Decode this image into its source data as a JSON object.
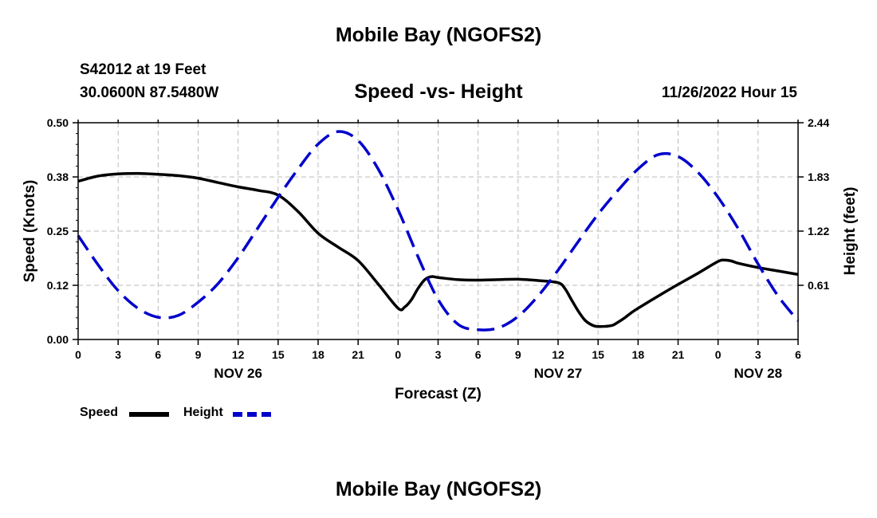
{
  "header": {
    "title": "Mobile Bay (NGOFS2)",
    "station": "S42012 at 19 Feet",
    "coordinates": "30.0600N  87.5480W",
    "subtitle": "Speed -vs- Height",
    "datetime": "11/26/2022 Hour 15"
  },
  "footer": {
    "title": "Mobile Bay (NGOFS2)"
  },
  "legend": {
    "speed_label": "Speed",
    "height_label": "Height"
  },
  "chart_data": {
    "type": "line",
    "title": "Speed -vs- Height",
    "xlabel": "Forecast (Z)",
    "ylabel": "Speed (Knots)",
    "ylabel_right": "Height (feet)",
    "xlim": [
      0,
      54
    ],
    "ylim": [
      0,
      0.5
    ],
    "ylim_right": [
      0,
      2.44
    ],
    "x_ticks": [
      0,
      3,
      6,
      9,
      12,
      15,
      18,
      21,
      24,
      27,
      30,
      33,
      36,
      39,
      42,
      45,
      48,
      51,
      54
    ],
    "x_tick_labels": [
      "0",
      "3",
      "6",
      "9",
      "12",
      "15",
      "18",
      "21",
      "0",
      "3",
      "6",
      "9",
      "12",
      "15",
      "18",
      "21",
      "0",
      "3",
      "6"
    ],
    "y_ticks": [
      0.0,
      0.125,
      0.25,
      0.375,
      0.5
    ],
    "y_tick_labels": [
      "0.00",
      "0.12",
      "0.25",
      "0.38",
      "0.50"
    ],
    "y_right_ticks": [
      0.61,
      1.22,
      1.83,
      2.44
    ],
    "y_right_tick_labels": [
      "0.61",
      "1.22",
      "1.83",
      "2.44"
    ],
    "date_labels": [
      {
        "x": 12,
        "label": "NOV 26"
      },
      {
        "x": 36,
        "label": "NOV 27"
      },
      {
        "x": 51,
        "label": "NOV 28"
      }
    ],
    "grid": true,
    "series": [
      {
        "name": "Speed",
        "axis": "left",
        "color": "#000000",
        "dash": "solid",
        "x": [
          0,
          1.5,
          3,
          4.5,
          6,
          7.5,
          9,
          10.5,
          12,
          13.5,
          15,
          16.5,
          18,
          19.5,
          21,
          22.5,
          24,
          24.5,
          25,
          25.5,
          26,
          26.5,
          27,
          28.5,
          30,
          31.5,
          33,
          34.5,
          36,
          36.5,
          37,
          37.5,
          38,
          38.5,
          39,
          40,
          40.5,
          41,
          41.5,
          42,
          43.5,
          45,
          46.5,
          48,
          48.5,
          49,
          49.5,
          51,
          52.5,
          54
        ],
        "y": [
          0.365,
          0.377,
          0.382,
          0.383,
          0.381,
          0.378,
          0.372,
          0.362,
          0.352,
          0.344,
          0.333,
          0.295,
          0.245,
          0.213,
          0.182,
          0.128,
          0.072,
          0.075,
          0.092,
          0.118,
          0.138,
          0.145,
          0.143,
          0.138,
          0.137,
          0.138,
          0.139,
          0.136,
          0.131,
          0.118,
          0.092,
          0.066,
          0.045,
          0.034,
          0.03,
          0.032,
          0.04,
          0.05,
          0.062,
          0.072,
          0.1,
          0.127,
          0.153,
          0.18,
          0.183,
          0.181,
          0.176,
          0.166,
          0.158,
          0.15
        ]
      },
      {
        "name": "Height",
        "axis": "right",
        "color": "#0000cc",
        "dash": "dashed",
        "x": [
          0,
          1.5,
          3,
          4.5,
          6,
          7.5,
          9,
          10.5,
          12,
          13.5,
          15,
          16.5,
          18,
          19.5,
          21,
          22.5,
          24,
          25.5,
          27,
          28.5,
          30,
          31.5,
          33,
          34.5,
          36,
          37.5,
          39,
          40.5,
          42,
          43.5,
          45,
          46.5,
          48,
          49.5,
          51,
          52.5,
          54
        ],
        "y": [
          1.17,
          0.84,
          0.55,
          0.35,
          0.25,
          0.27,
          0.42,
          0.63,
          0.92,
          1.26,
          1.6,
          1.92,
          2.2,
          2.34,
          2.24,
          1.92,
          1.46,
          0.93,
          0.45,
          0.17,
          0.11,
          0.13,
          0.26,
          0.49,
          0.78,
          1.1,
          1.41,
          1.68,
          1.92,
          2.08,
          2.06,
          1.88,
          1.6,
          1.25,
          0.85,
          0.49,
          0.21
        ]
      }
    ]
  }
}
